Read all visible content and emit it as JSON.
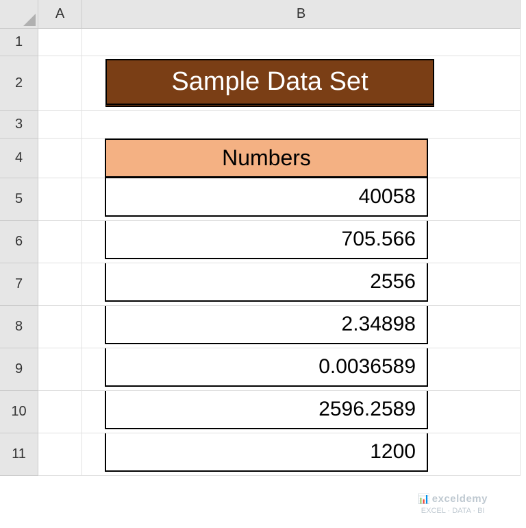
{
  "columns": [
    "A",
    "B"
  ],
  "rows": [
    "1",
    "2",
    "3",
    "4",
    "5",
    "6",
    "7",
    "8",
    "9",
    "10",
    "11"
  ],
  "title": "Sample Data Set",
  "table": {
    "header": "Numbers",
    "values": [
      "40058",
      "705.566",
      "2556",
      "2.34898",
      "0.0036589",
      "2596.2589",
      "1200"
    ]
  },
  "colors": {
    "title_bg": "#7a3e15",
    "title_text": "#ffffff",
    "header_bg": "#f4b183",
    "header_gray": "#e6e6e6",
    "border": "#000000"
  },
  "watermark": {
    "brand": "exceldemy",
    "tagline": "EXCEL · DATA · BI"
  }
}
